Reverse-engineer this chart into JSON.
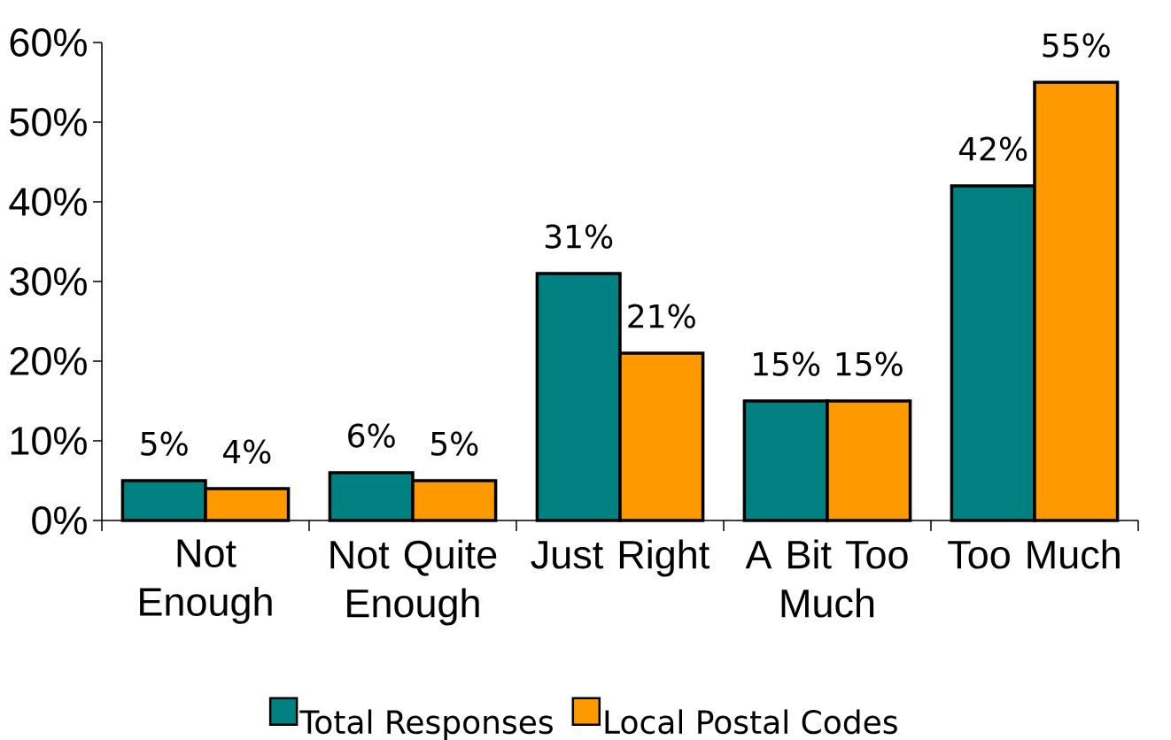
{
  "chart_data": {
    "type": "bar",
    "categories": [
      "Not Enough",
      "Not Quite Enough",
      "Just Right",
      "A Bit Too Much",
      "Too Much"
    ],
    "series": [
      {
        "name": "Total Responses",
        "color": "#008080",
        "values": [
          5,
          6,
          31,
          15,
          42
        ],
        "value_labels": [
          "5%",
          "6%",
          "31%",
          "15%",
          "42%"
        ]
      },
      {
        "name": "Local Postal Codes",
        "color": "#ff9900",
        "values": [
          4,
          5,
          21,
          15,
          55
        ],
        "value_labels": [
          "4%",
          "5%",
          "21%",
          "15%",
          "55%"
        ]
      }
    ],
    "ylim": [
      0,
      60
    ],
    "yticks": [
      {
        "value": 0,
        "label": "0%"
      },
      {
        "value": 10,
        "label": "10%"
      },
      {
        "value": 20,
        "label": "20%"
      },
      {
        "value": 30,
        "label": "30%"
      },
      {
        "value": 40,
        "label": "40%"
      },
      {
        "value": 50,
        "label": "50%"
      },
      {
        "value": 60,
        "label": "60%"
      }
    ],
    "legend": "bottom"
  }
}
